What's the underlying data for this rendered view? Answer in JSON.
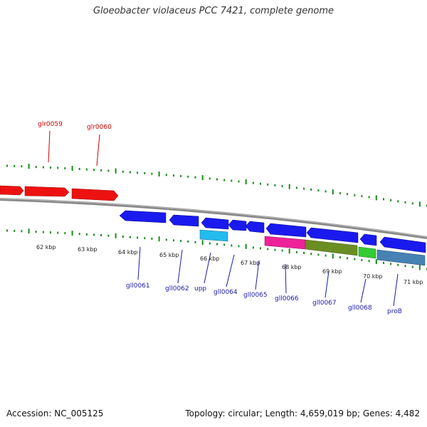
{
  "title": "Gloeobacter violaceus PCC 7421, complete genome",
  "footer": {
    "accession": "Accession: NC_005125",
    "summary": "Topology: circular; Length: 4,659,019 bp; Genes: 4,482"
  },
  "colors": {
    "forward_gene": "#ee1111",
    "reverse_gene": "#1a1aee",
    "backbone": "#888888",
    "tick": "#1a8a1a",
    "forward_label": "#cc0000",
    "reverse_label": "#1a1aaa"
  },
  "forward_labels": [
    "glr0059",
    "glr0060"
  ],
  "reverse_labels": [
    "gll0061",
    "gll0062",
    "upp",
    "gll0064",
    "gll0065",
    "gll0066",
    "gll0067",
    "gll0068",
    "proB"
  ],
  "kbp_labels": [
    "62 kbp",
    "63 kbp",
    "64 kbp",
    "65 kbp",
    "66 kbp",
    "67 kbp",
    "68 kbp",
    "69 kbp",
    "70 kbp",
    "71 kbp"
  ],
  "feature_tracks": [
    {
      "name": "upp-feature",
      "color": "#22bbee"
    },
    {
      "name": "gll0066-feature",
      "color": "#ee2299"
    },
    {
      "name": "gll0067-feature",
      "color": "#6b8e23"
    },
    {
      "name": "gll0068-feature",
      "color": "#33cc33"
    },
    {
      "name": "proB-feature",
      "color": "#4682b4"
    }
  ]
}
